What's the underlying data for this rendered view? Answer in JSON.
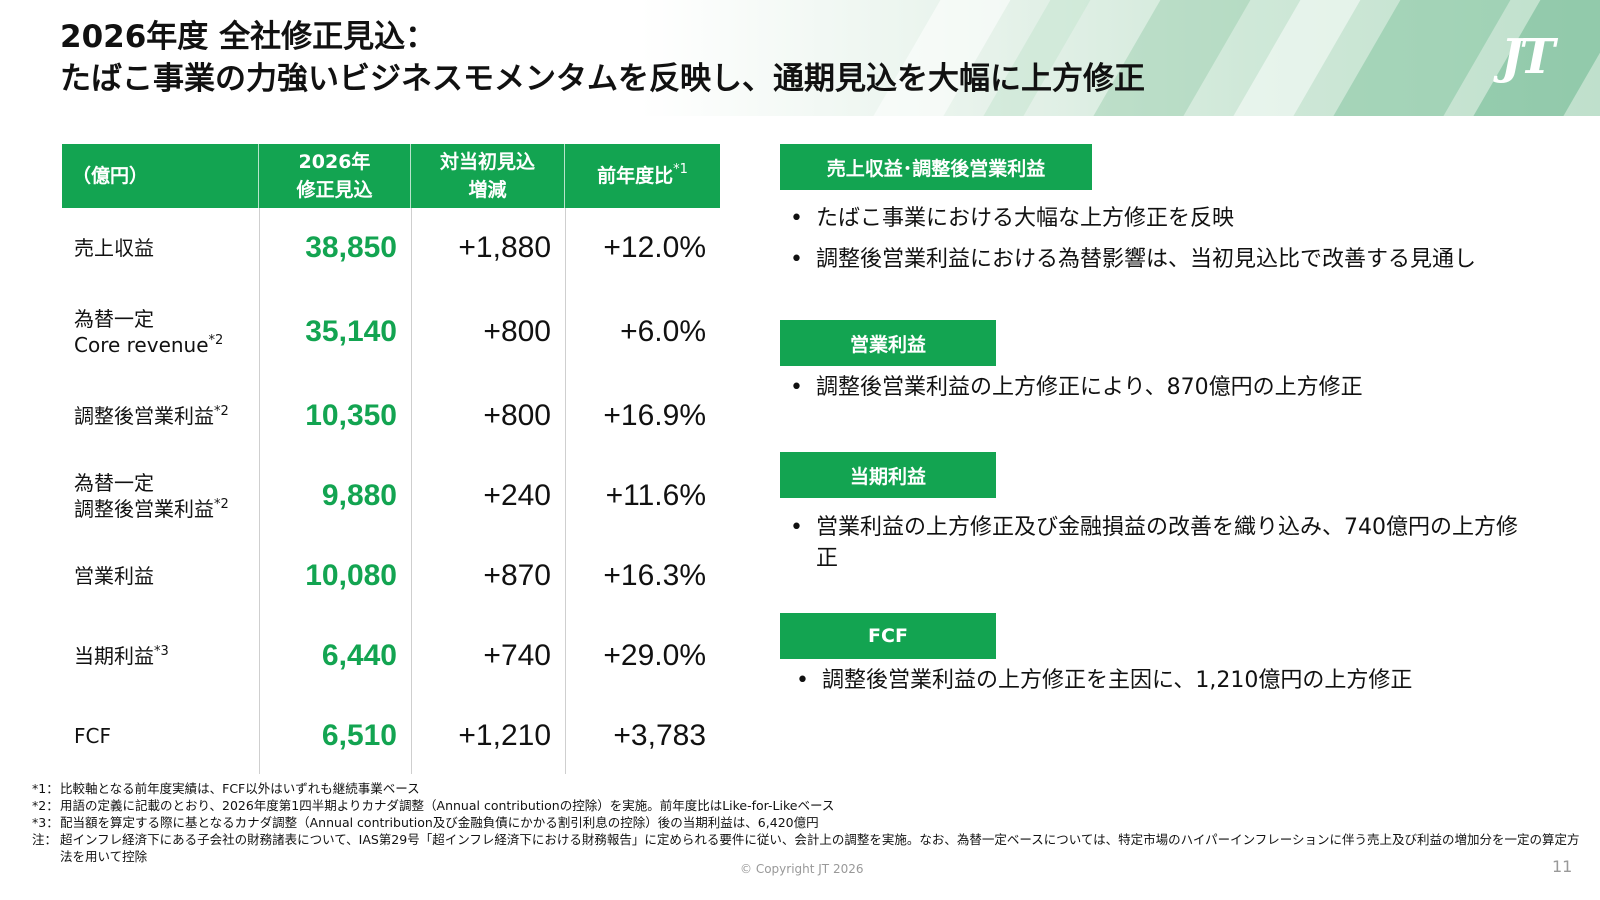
{
  "header": {
    "title_line1": "2026年度 全社修正見込：",
    "title_line2": "たばこ事業の力強いビジネスモメンタムを反映し、通期見込を大幅に上方修正",
    "logo": "JT"
  },
  "table": {
    "headers": {
      "label": "（億円）",
      "col1_line1": "2026年",
      "col1_line2": "修正見込",
      "col2_line1": "対当初見込",
      "col2_line2": "増減",
      "col3": "前年度比",
      "col3_note": "*1"
    },
    "rows": [
      {
        "label_line1": "売上収益",
        "label_line2": "",
        "note": "",
        "value": "38,850",
        "change": "+1,880",
        "yoy": "+12.0%"
      },
      {
        "label_line1": "為替一定",
        "label_line2": "Core revenue",
        "note": "*2",
        "value": "35,140",
        "change": "+800",
        "yoy": "+6.0%"
      },
      {
        "label_line1": "調整後営業利益",
        "label_line2": "",
        "note": "*2",
        "value": "10,350",
        "change": "+800",
        "yoy": "+16.9%"
      },
      {
        "label_line1": "為替一定",
        "label_line2": "調整後営業利益",
        "note": "*2",
        "value": "9,880",
        "change": "+240",
        "yoy": "+11.6%"
      },
      {
        "label_line1": "営業利益",
        "label_line2": "",
        "note": "",
        "value": "10,080",
        "change": "+870",
        "yoy": "+16.3%"
      },
      {
        "label_line1": "当期利益",
        "label_line2": "",
        "note": "*3",
        "value": "6,440",
        "change": "+740",
        "yoy": "+29.0%"
      },
      {
        "label_line1": "FCF",
        "label_line2": "",
        "note": "",
        "value": "6,510",
        "change": "+1,210",
        "yoy": "+3,783"
      }
    ]
  },
  "sections": [
    {
      "tag": "売上収益･調整後営業利益",
      "bullets": [
        "たばこ事業における大幅な上方修正を反映",
        "調整後営業利益における為替影響は、当初見込比で改善する見通し"
      ]
    },
    {
      "tag": "営業利益",
      "bullets": [
        "調整後営業利益の上方修正により、870億円の上方修正"
      ]
    },
    {
      "tag": "当期利益",
      "bullets": [
        "営業利益の上方修正及び金融損益の改善を織り込み、740億円の上方修正"
      ]
    },
    {
      "tag": "FCF",
      "bullets": [
        "調整後営業利益の上方修正を主因に、1,210億円の上方修正"
      ]
    }
  ],
  "bullet_mark": "•",
  "footnotes": [
    {
      "key": "*1：",
      "text": "比較軸となる前年度実績は、FCF以外はいずれも継続事業ベース"
    },
    {
      "key": "*2：",
      "text": "用語の定義に記載のとおり、2026年度第1四半期よりカナダ調整（Annual contributionの控除）を実施。前年度比はLike-for-Likeベース"
    },
    {
      "key": "*3：",
      "text": "配当額を算定する際に基となるカナダ調整（Annual contribution及び金融負債にかかる割引利息の控除）後の当期利益は、6,420億円"
    },
    {
      "key": "注：",
      "text": "超インフレ経済下にある子会社の財務諸表について、IAS第29号「超インフレ経済下における財務報告」に定められる要件に従い、会計上の調整を実施。なお、為替一定ベースについては、特定市場のハイパーインフレーションに伴う売上及び利益の増加分を一定の算定方法を用いて控除"
    }
  ],
  "footer": {
    "copyright": "© Copyright JT 2026",
    "page": "11"
  },
  "colors": {
    "brand_green": "#13a451"
  }
}
